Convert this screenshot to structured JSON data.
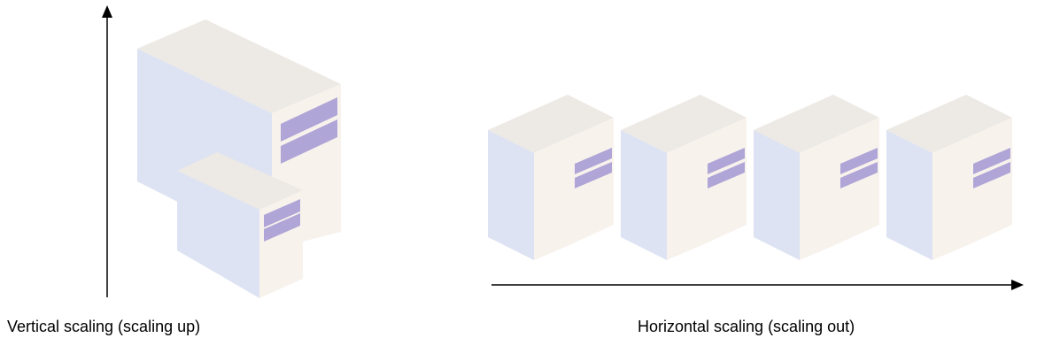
{
  "captions": {
    "vertical": "Vertical scaling (scaling up)",
    "horizontal": "Horizontal scaling (scaling out)"
  },
  "colors": {
    "front_face": "#dde3f3",
    "top_face": "#ede9e4",
    "side_face": "#f8f2ed",
    "drive_bay": "#afa5d6",
    "arrow": "#000000"
  },
  "icons": {
    "server": "server-tower-icon"
  },
  "vertical_group": {
    "server_count": 2
  },
  "horizontal_group": {
    "server_count": 4
  }
}
